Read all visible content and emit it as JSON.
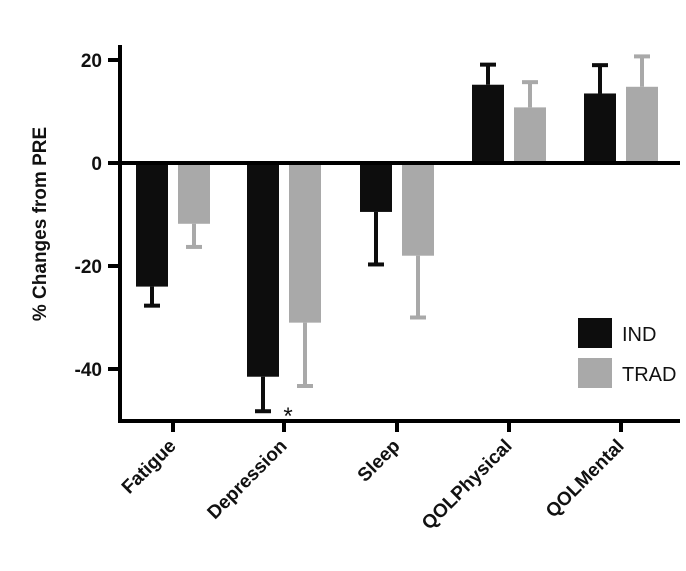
{
  "chart_data": {
    "type": "bar",
    "categories": [
      "Fatigue",
      "Depression",
      "Sleep",
      "QOLPhysical",
      "QOLMental"
    ],
    "series": [
      {
        "name": "IND",
        "color": "#0d0d0d",
        "values": [
          -24,
          -41.5,
          -9.5,
          15.2,
          13.5
        ],
        "errors": [
          3.7,
          6.7,
          10.2,
          3.9,
          5.5
        ]
      },
      {
        "name": "TRAD",
        "color": "#a9a9a9",
        "values": [
          -11.8,
          -31,
          -18,
          10.8,
          14.8
        ],
        "errors": [
          4.5,
          12.3,
          12.0,
          4.9,
          5.9
        ]
      }
    ],
    "title": "",
    "xlabel": "",
    "ylabel": "% Changes from PRE",
    "ylim": [
      -50,
      22
    ],
    "yticks": [
      20,
      0,
      -20,
      -40
    ],
    "ytick_labels": [
      "20",
      "0",
      "-20",
      "-40"
    ],
    "grid": false,
    "legend_position": "bottom-right",
    "annotations": [
      {
        "text": "*",
        "category": "Depression"
      }
    ]
  }
}
